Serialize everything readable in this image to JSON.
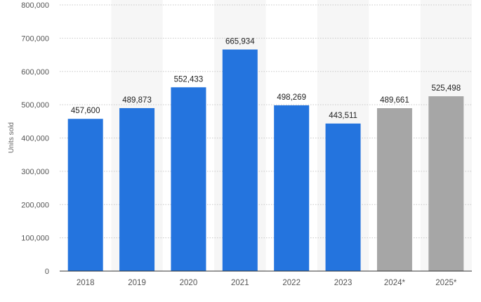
{
  "chart_data": {
    "type": "bar",
    "ylabel": "Units sold",
    "xlabel": "",
    "ylim": [
      0,
      800000
    ],
    "y_ticks": [
      0,
      100000,
      200000,
      300000,
      400000,
      500000,
      600000,
      700000,
      800000
    ],
    "y_tick_labels": [
      "0",
      "100,000",
      "200,000",
      "300,000",
      "400,000",
      "500,000",
      "600,000",
      "700,000",
      "800,000"
    ],
    "categories": [
      "2018",
      "2019",
      "2020",
      "2021",
      "2022",
      "2023",
      "2024*",
      "2025*"
    ],
    "values": [
      457600,
      489873,
      552433,
      665934,
      498269,
      443511,
      489661,
      525498
    ],
    "value_labels": [
      "457,600",
      "489,873",
      "552,433",
      "665,934",
      "498,269",
      "443,511",
      "489,661",
      "525,498"
    ],
    "forecast": [
      false,
      false,
      false,
      false,
      false,
      false,
      true,
      true
    ],
    "grid": true,
    "colors": {
      "actual": "#2474de",
      "forecast": "#a6a6a6",
      "band": "#f6f6f6",
      "grid": "#c8c8c8",
      "axis": "#333333",
      "tick_text": "#555555",
      "label_text": "#222222"
    }
  }
}
